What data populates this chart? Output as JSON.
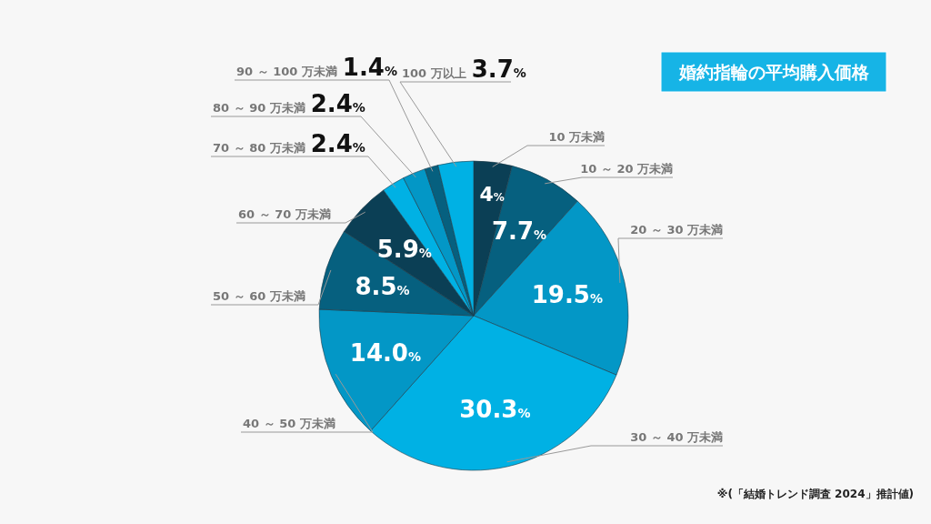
{
  "chart_data": {
    "type": "pie",
    "title": "婚約指輪の平均購入価格",
    "categories": [
      "10 万未満",
      "10 ～ 20 万未満",
      "20 ～ 30 万未満",
      "30 ～ 40 万未満",
      "40 ～ 50 万未満",
      "50 ～ 60 万未満",
      "60 ～ 70 万未満",
      "70 ～ 80 万未満",
      "80 ～ 90 万未満",
      "90 ～ 100 万未満",
      "100 万以上"
    ],
    "values": [
      4,
      7.7,
      19.5,
      30.3,
      14.0,
      8.5,
      5.9,
      2.4,
      2.4,
      1.4,
      3.7
    ],
    "value_labels": [
      "4%",
      "7.7%",
      "19.5%",
      "30.3%",
      "14.0%",
      "8.5%",
      "5.9%",
      "2.4%",
      "2.4%",
      "1.4%",
      "3.7%"
    ],
    "colors": [
      "#0b3f55",
      "#06607f",
      "#0397c6",
      "#00b1e4",
      "#0397c6",
      "#06607f",
      "#0b3f55",
      "#00b1e4",
      "#0397c6",
      "#06607f",
      "#00b1e4"
    ],
    "annotations": [
      "※(「結婚トレンド調査 2024」推計値)"
    ]
  }
}
